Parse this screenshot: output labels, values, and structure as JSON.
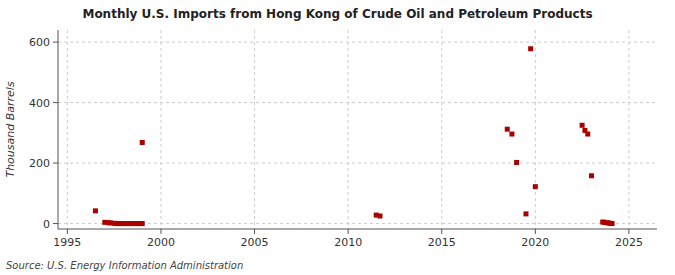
{
  "chart_data": {
    "type": "scatter",
    "title": "Monthly U.S. Imports from Hong Kong of Crude Oil and Petroleum Products",
    "ylabel": "Thousand Barrels",
    "source": "Source: U.S. Energy Information Administration",
    "color": "#aa0000",
    "marker": "square",
    "grid": true,
    "xlim": [
      1994.5,
      2026.5
    ],
    "ylim": [
      -18,
      640
    ],
    "xticks": [
      1995,
      2000,
      2005,
      2010,
      2015,
      2020,
      2025
    ],
    "yticks": [
      0,
      200,
      400,
      600
    ],
    "x": [
      1996.5,
      1999.0,
      1997.0,
      1997.2,
      1997.3,
      1997.5,
      1997.6,
      1997.7,
      1997.8,
      1997.9,
      1998.0,
      1998.1,
      1998.2,
      1998.3,
      1998.4,
      1998.5,
      1998.6,
      1998.7,
      1998.8,
      1998.9,
      1999.0,
      2011.5,
      2011.7,
      2018.5,
      2018.75,
      2019.0,
      2019.5,
      2019.75,
      2020.0,
      2022.5,
      2022.65,
      2022.8,
      2023.0,
      2023.6,
      2023.7,
      2023.8,
      2023.9,
      2024.0,
      2024.1
    ],
    "values": [
      42,
      268,
      4,
      3,
      2,
      1,
      0,
      0,
      0,
      0,
      0,
      0,
      0,
      0,
      0,
      0,
      0,
      0,
      0,
      0,
      0,
      28,
      25,
      312,
      296,
      202,
      32,
      578,
      122,
      325,
      308,
      296,
      158,
      5,
      4,
      3,
      2,
      1,
      0
    ]
  }
}
